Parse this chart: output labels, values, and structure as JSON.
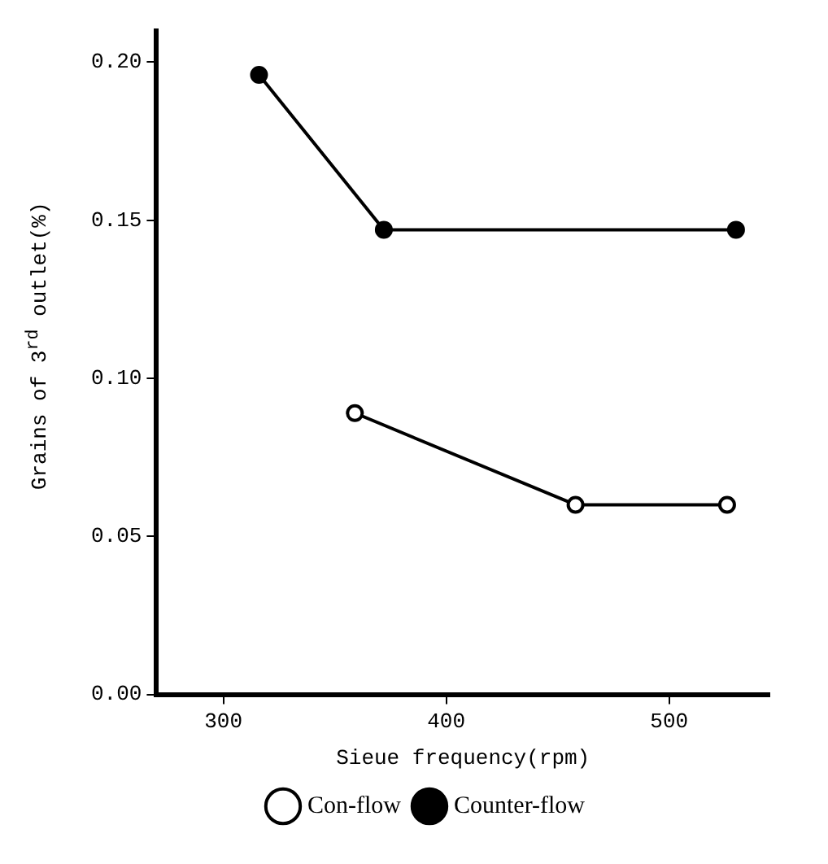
{
  "chart_data": {
    "type": "line",
    "xlabel": "Sieue frequency(rpm)",
    "ylabel": "Grains of 3$^{rd}$ outlet(%)",
    "xlim": [
      270,
      545
    ],
    "xticks": [
      300,
      400,
      500
    ],
    "ylim": [
      0,
      0.21
    ],
    "yticks": [
      {
        "value": 0,
        "label": "0.00"
      },
      {
        "value": 0.05,
        "label": "0.05"
      },
      {
        "value": 0.1,
        "label": "0.10"
      },
      {
        "value": 0.15,
        "label": "0.15"
      },
      {
        "value": 0.2,
        "label": "0.20"
      }
    ],
    "grid": false,
    "legend": "bottom",
    "marker": "circle",
    "line_style": "solid",
    "series": [
      {
        "name": "Con-flow",
        "color": "#000000",
        "x": [
          359,
          458,
          526
        ],
        "values": [
          0.089,
          0.06,
          0.06
        ]
      },
      {
        "name": "Counter-flow",
        "color": "#000000",
        "x": [
          316,
          372,
          530
        ],
        "values": [
          0.196,
          0.147,
          0.147
        ]
      }
    ]
  }
}
